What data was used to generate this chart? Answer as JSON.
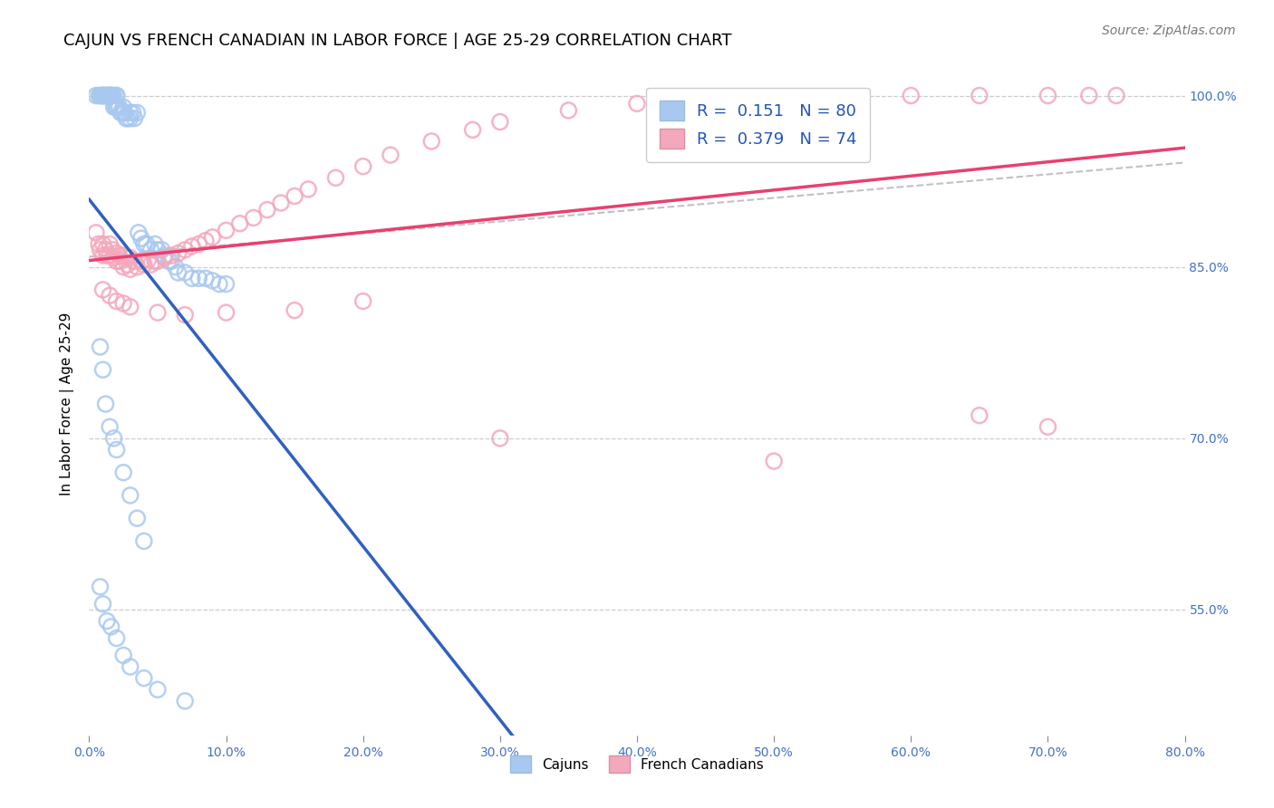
{
  "title": "CAJUN VS FRENCH CANADIAN IN LABOR FORCE | AGE 25-29 CORRELATION CHART",
  "source": "Source: ZipAtlas.com",
  "ylabel": "In Labor Force | Age 25-29",
  "xlabel_ticks": [
    "0.0%",
    "10.0%",
    "20.0%",
    "30.0%",
    "40.0%",
    "50.0%",
    "60.0%",
    "70.0%",
    "80.0%"
  ],
  "ylabel_ticks": [
    "100.0%",
    "85.0%",
    "70.0%",
    "55.0%"
  ],
  "xlim": [
    0.0,
    0.8
  ],
  "ylim": [
    0.44,
    1.02
  ],
  "cajun_R": 0.151,
  "cajun_N": 80,
  "french_R": 0.379,
  "french_N": 74,
  "cajun_color": "#A8C8F0",
  "french_color": "#F4A8BC",
  "cajun_line_color": "#3060C0",
  "french_line_color": "#E84070",
  "legend_cajun_label": "Cajuns",
  "legend_french_label": "French Canadians",
  "title_fontsize": 13,
  "axis_label_fontsize": 11,
  "tick_fontsize": 10,
  "source_fontsize": 10,
  "cajun_x": [
    0.005,
    0.007,
    0.008,
    0.009,
    0.01,
    0.01,
    0.01,
    0.01,
    0.011,
    0.012,
    0.013,
    0.013,
    0.014,
    0.014,
    0.015,
    0.015,
    0.015,
    0.016,
    0.016,
    0.017,
    0.018,
    0.018,
    0.019,
    0.02,
    0.02,
    0.02,
    0.021,
    0.022,
    0.023,
    0.024,
    0.025,
    0.025,
    0.026,
    0.027,
    0.028,
    0.03,
    0.03,
    0.032,
    0.033,
    0.035,
    0.036,
    0.038,
    0.04,
    0.042,
    0.045,
    0.048,
    0.05,
    0.053,
    0.055,
    0.058,
    0.06,
    0.063,
    0.065,
    0.07,
    0.075,
    0.08,
    0.085,
    0.09,
    0.095,
    0.1,
    0.008,
    0.01,
    0.012,
    0.015,
    0.018,
    0.02,
    0.025,
    0.03,
    0.035,
    0.04,
    0.008,
    0.01,
    0.013,
    0.016,
    0.02,
    0.025,
    0.03,
    0.04,
    0.05,
    0.07
  ],
  "cajun_y": [
    1.0,
    1.0,
    1.0,
    1.0,
    1.0,
    1.0,
    1.0,
    1.0,
    1.0,
    1.0,
    1.0,
    1.0,
    1.0,
    1.0,
    1.0,
    1.0,
    1.0,
    1.0,
    1.0,
    1.0,
    1.0,
    0.99,
    0.99,
    1.0,
    1.0,
    0.99,
    0.99,
    0.99,
    0.985,
    0.985,
    0.99,
    0.985,
    0.985,
    0.98,
    0.98,
    0.985,
    0.98,
    0.985,
    0.98,
    0.985,
    0.88,
    0.875,
    0.87,
    0.87,
    0.865,
    0.87,
    0.865,
    0.865,
    0.86,
    0.855,
    0.855,
    0.85,
    0.845,
    0.845,
    0.84,
    0.84,
    0.84,
    0.838,
    0.835,
    0.835,
    0.78,
    0.76,
    0.73,
    0.71,
    0.7,
    0.69,
    0.67,
    0.65,
    0.63,
    0.61,
    0.57,
    0.555,
    0.54,
    0.535,
    0.525,
    0.51,
    0.5,
    0.49,
    0.48,
    0.47
  ],
  "french_x": [
    0.005,
    0.007,
    0.008,
    0.01,
    0.01,
    0.012,
    0.013,
    0.015,
    0.015,
    0.017,
    0.018,
    0.02,
    0.02,
    0.022,
    0.023,
    0.025,
    0.025,
    0.027,
    0.028,
    0.03,
    0.03,
    0.033,
    0.035,
    0.038,
    0.04,
    0.043,
    0.045,
    0.048,
    0.05,
    0.055,
    0.06,
    0.065,
    0.07,
    0.075,
    0.08,
    0.085,
    0.09,
    0.1,
    0.11,
    0.12,
    0.13,
    0.14,
    0.15,
    0.16,
    0.18,
    0.2,
    0.22,
    0.25,
    0.28,
    0.3,
    0.35,
    0.4,
    0.45,
    0.5,
    0.55,
    0.6,
    0.65,
    0.7,
    0.73,
    0.75,
    0.01,
    0.015,
    0.02,
    0.025,
    0.03,
    0.05,
    0.07,
    0.1,
    0.15,
    0.2,
    0.3,
    0.5,
    0.65,
    0.7
  ],
  "french_y": [
    0.88,
    0.87,
    0.865,
    0.87,
    0.86,
    0.865,
    0.86,
    0.87,
    0.86,
    0.865,
    0.858,
    0.862,
    0.855,
    0.86,
    0.855,
    0.86,
    0.85,
    0.858,
    0.852,
    0.858,
    0.848,
    0.855,
    0.85,
    0.855,
    0.852,
    0.856,
    0.852,
    0.855,
    0.855,
    0.858,
    0.86,
    0.862,
    0.865,
    0.868,
    0.87,
    0.873,
    0.876,
    0.882,
    0.888,
    0.893,
    0.9,
    0.906,
    0.912,
    0.918,
    0.928,
    0.938,
    0.948,
    0.96,
    0.97,
    0.977,
    0.987,
    0.993,
    0.996,
    0.998,
    0.999,
    1.0,
    1.0,
    1.0,
    1.0,
    1.0,
    0.83,
    0.825,
    0.82,
    0.818,
    0.815,
    0.81,
    0.808,
    0.81,
    0.812,
    0.82,
    0.7,
    0.68,
    0.72,
    0.71
  ]
}
